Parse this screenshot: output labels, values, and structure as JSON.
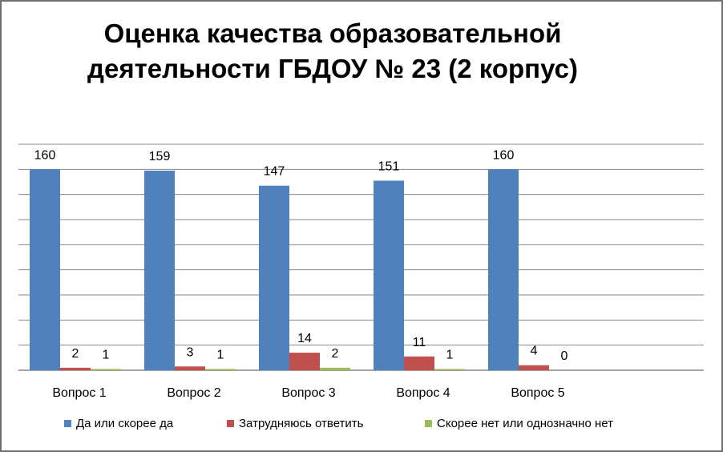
{
  "chart_data": {
    "type": "bar",
    "title": "Оценка качества образовательной деятельности ГБДОУ № 23 (2 корпус)",
    "title_lines": [
      "Оценка качества образовательной",
      "деятельности ГБДОУ № 23 (2 корпус)"
    ],
    "categories": [
      "Вопрос 1",
      "Вопрос 2",
      "Вопрос 3",
      "Вопрос 4",
      "Вопрос 5"
    ],
    "series": [
      {
        "name": "Да или скорее да",
        "color": "#4f81bd",
        "values": [
          160,
          159,
          147,
          151,
          160
        ],
        "labels": [
          "160",
          "159",
          "147",
          "151",
          "160"
        ]
      },
      {
        "name": "Затрудняюсь ответить",
        "color": "#c0504d",
        "values": [
          2,
          3,
          14,
          11,
          4
        ],
        "labels": [
          "2",
          "3",
          "14",
          "11",
          "4"
        ]
      },
      {
        "name": "Скорее нет или однозначно нет",
        "color": "#9bbb59",
        "values": [
          1,
          1,
          2,
          1,
          0
        ],
        "labels": [
          "1",
          "1",
          "2",
          "1",
          "0"
        ]
      }
    ],
    "ylim": [
      0,
      180
    ],
    "grid": true,
    "legend_position": "bottom",
    "xlabel": "",
    "ylabel": ""
  }
}
